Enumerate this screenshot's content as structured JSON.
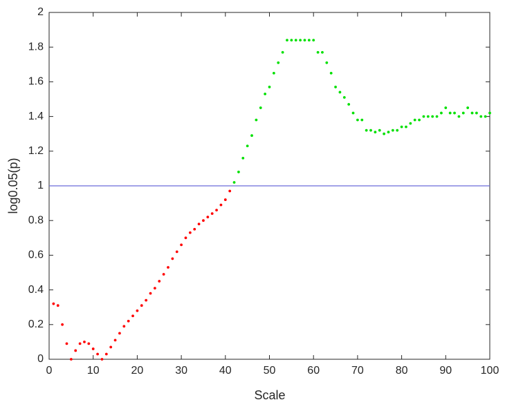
{
  "chart_data": {
    "type": "scatter",
    "xlabel": "Scale",
    "ylabel": "log0.05(p)",
    "xlim": [
      0,
      100
    ],
    "ylim": [
      0,
      2
    ],
    "xticks": [
      0,
      10,
      20,
      30,
      40,
      50,
      60,
      70,
      80,
      90,
      100
    ],
    "yticks": [
      0,
      0.2,
      0.4,
      0.6,
      0.8,
      1,
      1.2,
      1.4,
      1.6,
      1.8,
      2
    ],
    "grid": false,
    "reference_line": {
      "value": 1,
      "color": "#6b6bdb"
    },
    "series": [
      {
        "color": "#ff0000",
        "x": [
          1,
          2,
          3,
          4,
          5,
          6,
          7,
          8,
          9,
          10,
          11,
          12,
          13,
          14,
          15,
          16,
          17,
          18,
          19,
          20,
          21,
          22,
          23,
          24,
          25,
          26,
          27,
          28,
          29,
          30,
          31,
          32,
          33,
          34,
          35,
          36,
          37,
          38,
          39,
          40,
          41
        ],
        "values": [
          0.32,
          0.31,
          0.2,
          0.09,
          0,
          0.05,
          0.09,
          0.1,
          0.09,
          0.06,
          0.03,
          0,
          0.03,
          0.07,
          0.11,
          0.15,
          0.19,
          0.22,
          0.25,
          0.28,
          0.31,
          0.34,
          0.38,
          0.41,
          0.45,
          0.49,
          0.53,
          0.58,
          0.62,
          0.66,
          0.7,
          0.73,
          0.75,
          0.78,
          0.8,
          0.82,
          0.84,
          0.86,
          0.89,
          0.92,
          0.97
        ]
      },
      {
        "color": "#00e000",
        "x": [
          42,
          43,
          44,
          45,
          46,
          47,
          48,
          49,
          50,
          51,
          52,
          53,
          54,
          55,
          56,
          57,
          58,
          59,
          60,
          61,
          62,
          63,
          64,
          65,
          66,
          67,
          68,
          69,
          70,
          71,
          72,
          73,
          74,
          75,
          76,
          77,
          78,
          79,
          80,
          81,
          82,
          83,
          84,
          85,
          86,
          87,
          88,
          89,
          90,
          91,
          92,
          93,
          94,
          95,
          96,
          97,
          98,
          99,
          100
        ],
        "values": [
          1.02,
          1.08,
          1.16,
          1.23,
          1.29,
          1.38,
          1.45,
          1.53,
          1.57,
          1.65,
          1.71,
          1.77,
          1.84,
          1.84,
          1.84,
          1.84,
          1.84,
          1.84,
          1.84,
          1.77,
          1.77,
          1.71,
          1.65,
          1.57,
          1.54,
          1.51,
          1.47,
          1.42,
          1.38,
          1.38,
          1.32,
          1.32,
          1.31,
          1.32,
          1.3,
          1.31,
          1.32,
          1.32,
          1.34,
          1.34,
          1.36,
          1.38,
          1.38,
          1.4,
          1.4,
          1.4,
          1.4,
          1.42,
          1.45,
          1.42,
          1.42,
          1.4,
          1.42,
          1.45,
          1.42,
          1.42,
          1.4,
          1.4,
          1.42
        ]
      }
    ]
  }
}
